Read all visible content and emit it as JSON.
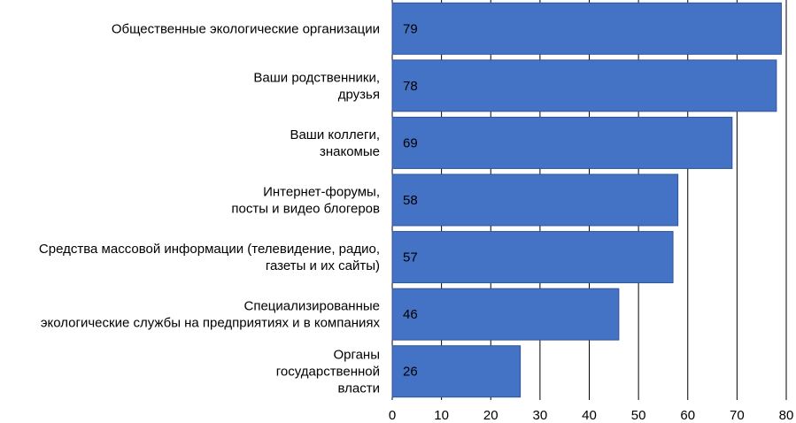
{
  "chart_data": {
    "type": "bar",
    "orientation": "horizontal",
    "categories": [
      [
        "Общественные экологические организации"
      ],
      [
        "Ваши родственники,",
        "друзья"
      ],
      [
        "Ваши коллеги,",
        "знакомые"
      ],
      [
        "Интернет-форумы,",
        "посты и видео блогеров"
      ],
      [
        "Средства массовой информации (телевидение, радио,",
        "газеты и их сайты)"
      ],
      [
        "Специализированные",
        "экологические службы на предприятиях и в компаниях"
      ],
      [
        "Органы",
        "государственной",
        "власти"
      ]
    ],
    "values": [
      79,
      78,
      69,
      58,
      57,
      46,
      26
    ],
    "data_labels": [
      "79",
      "78",
      "69",
      "58",
      "57",
      "46",
      "26"
    ],
    "xlim": [
      0,
      80
    ],
    "xticks": [
      "0",
      "10",
      "20",
      "30",
      "40",
      "50",
      "60",
      "70",
      "80"
    ],
    "grid": "vertical",
    "title": "",
    "xlabel": "",
    "ylabel": "",
    "colors": {
      "bar": "#4472C4",
      "bar_edge": "#2F5597",
      "grid": "#000000"
    }
  }
}
